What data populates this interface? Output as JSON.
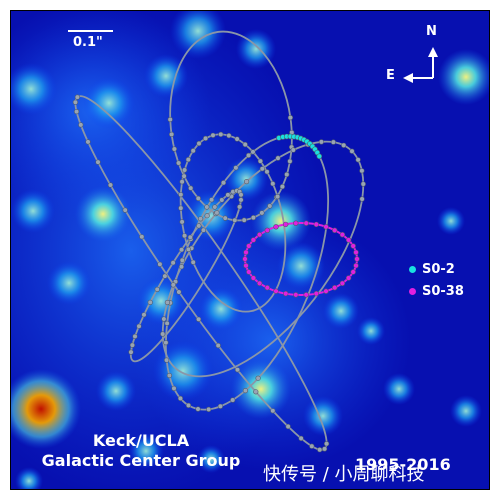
{
  "image": {
    "scale_bar_label": "0.1\"",
    "compass": {
      "north": "N",
      "east": "E"
    },
    "legend": [
      {
        "label": "S0-2",
        "color": "#19e0e0"
      },
      {
        "label": "S0-38",
        "color": "#e020e0"
      }
    ],
    "credit_lines": [
      "Keck/UCLA",
      "Galactic Center Group"
    ],
    "date_range": "1995-2016",
    "watermark": "快传号 / 小周聊科技",
    "colors": {
      "background": "#0710b0",
      "orbit": "#8a96a8",
      "orbit_dots": "#98a4b4",
      "s02": "#19e0e0",
      "s038": "#e020e0"
    }
  }
}
